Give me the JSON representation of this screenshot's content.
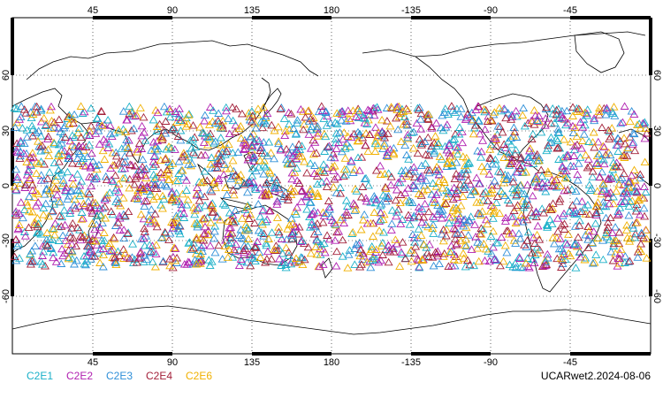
{
  "map": {
    "lon_labels": [
      "45",
      "90",
      "135",
      "180",
      "-135",
      "-90",
      "-45"
    ],
    "lat_labels": [
      "60",
      "30",
      "0",
      "-30",
      "-60"
    ]
  },
  "legend": [
    {
      "label": "C2E1",
      "color": "#1ab0c8"
    },
    {
      "label": "C2E2",
      "color": "#b01fb0"
    },
    {
      "label": "C2E3",
      "color": "#2f8fd8"
    },
    {
      "label": "C2E4",
      "color": "#a3213a"
    },
    {
      "label": "C2E6",
      "color": "#f0b000"
    }
  ],
  "footer": {
    "source_label": "UCARwet2.2024-08-06"
  },
  "markers": {
    "lat_range": [
      -45,
      45
    ],
    "symbol": "triangle"
  }
}
